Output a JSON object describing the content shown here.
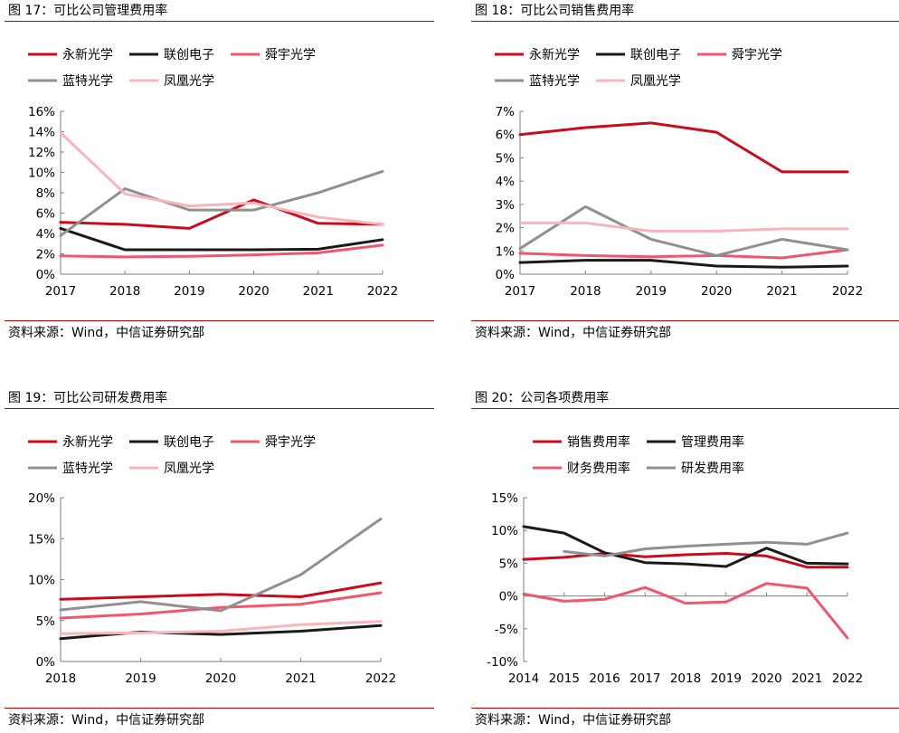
{
  "charts": [
    {
      "title": "图 17：可比公司管理费用率",
      "source": "资料来源：Wind，中信证券研究部",
      "chart_data": {
        "type": "line",
        "categories": [
          "2017",
          "2018",
          "2019",
          "2020",
          "2021",
          "2022"
        ],
        "ylim": [
          0,
          16
        ],
        "yticks": [
          0,
          2,
          4,
          6,
          8,
          10,
          12,
          14,
          16
        ],
        "ytick_labels": [
          "0%",
          "2%",
          "4%",
          "6%",
          "8%",
          "10%",
          "12%",
          "14%",
          "16%"
        ],
        "legend_placement": "top",
        "series": [
          {
            "name": "永新光学",
            "color": "#cc0a1e",
            "values": [
              5.1,
              4.9,
              4.5,
              7.3,
              5.0,
              4.9
            ]
          },
          {
            "name": "联创电子",
            "color": "#1a1a1a",
            "values": [
              4.5,
              2.4,
              2.4,
              2.4,
              2.45,
              3.4
            ]
          },
          {
            "name": "舜宇光学",
            "color": "#f0566e",
            "values": [
              1.8,
              1.7,
              1.75,
              1.9,
              2.1,
              2.85
            ]
          },
          {
            "name": "蓝特光学",
            "color": "#909090",
            "values": [
              3.8,
              8.4,
              6.3,
              6.3,
              8.0,
              10.1
            ]
          },
          {
            "name": "凤凰光学",
            "color": "#f7b5bc",
            "values": [
              13.9,
              7.9,
              6.7,
              7.0,
              5.6,
              4.9
            ]
          }
        ]
      }
    },
    {
      "title": "图 18：可比公司销售费用率",
      "source": "资料来源：Wind，中信证券研究部",
      "chart_data": {
        "type": "line",
        "categories": [
          "2017",
          "2018",
          "2019",
          "2020",
          "2021",
          "2022"
        ],
        "ylim": [
          0,
          7
        ],
        "yticks": [
          0,
          1,
          2,
          3,
          4,
          5,
          6,
          7
        ],
        "ytick_labels": [
          "0%",
          "1%",
          "2%",
          "3%",
          "4%",
          "5%",
          "6%",
          "7%"
        ],
        "legend_placement": "top",
        "series": [
          {
            "name": "永新光学",
            "color": "#cc0a1e",
            "values": [
              6.0,
              6.3,
              6.5,
              6.1,
              4.4,
              4.4
            ]
          },
          {
            "name": "联创电子",
            "color": "#1a1a1a",
            "values": [
              0.5,
              0.6,
              0.6,
              0.35,
              0.3,
              0.35
            ]
          },
          {
            "name": "舜宇光学",
            "color": "#f0566e",
            "values": [
              0.9,
              0.8,
              0.75,
              0.8,
              0.7,
              1.05
            ]
          },
          {
            "name": "蓝特光学",
            "color": "#909090",
            "values": [
              1.1,
              2.9,
              1.5,
              0.8,
              1.5,
              1.05
            ]
          },
          {
            "name": "凤凰光学",
            "color": "#f7b5bc",
            "values": [
              2.2,
              2.2,
              1.85,
              1.85,
              1.95,
              1.95
            ]
          }
        ]
      }
    },
    {
      "title": "图 19：可比公司研发费用率",
      "source": "资料来源：Wind，中信证券研究部",
      "chart_data": {
        "type": "line",
        "categories": [
          "2018",
          "2019",
          "2020",
          "2021",
          "2022"
        ],
        "ylim": [
          0,
          20
        ],
        "yticks": [
          0,
          5,
          10,
          15,
          20
        ],
        "ytick_labels": [
          "0%",
          "5%",
          "10%",
          "15%",
          "20%"
        ],
        "legend_placement": "top",
        "series": [
          {
            "name": "永新光学",
            "color": "#cc0a1e",
            "values": [
              7.6,
              7.9,
              8.2,
              7.9,
              9.6
            ]
          },
          {
            "name": "联创电子",
            "color": "#1a1a1a",
            "values": [
              2.8,
              3.6,
              3.3,
              3.7,
              4.4
            ]
          },
          {
            "name": "舜宇光学",
            "color": "#f0566e",
            "values": [
              5.3,
              5.8,
              6.6,
              7.0,
              8.4
            ]
          },
          {
            "name": "蓝特光学",
            "color": "#909090",
            "values": [
              6.3,
              7.3,
              6.2,
              10.6,
              17.4
            ]
          },
          {
            "name": "凤凰光学",
            "color": "#f7b5bc",
            "values": [
              3.4,
              3.5,
              3.7,
              4.5,
              4.9
            ]
          }
        ]
      }
    },
    {
      "title": "图 20：公司各项费用率",
      "source": "资料来源：Wind，中信证券研究部",
      "chart_data": {
        "type": "line",
        "categories": [
          "2014",
          "2015",
          "2016",
          "2017",
          "2018",
          "2019",
          "2020",
          "2021",
          "2022"
        ],
        "ylim": [
          -10,
          15
        ],
        "yticks": [
          -10,
          -5,
          0,
          5,
          10,
          15
        ],
        "ytick_labels": [
          "-10%",
          "-5%",
          "0%",
          "5%",
          "10%",
          "15%"
        ],
        "legend_placement": "top",
        "series": [
          {
            "name": "销售费用率",
            "color": "#cc0a1e",
            "values": [
              5.6,
              5.9,
              6.5,
              6.0,
              6.3,
              6.5,
              6.1,
              4.4,
              4.4
            ]
          },
          {
            "name": "管理费用率",
            "color": "#1a1a1a",
            "values": [
              10.6,
              9.6,
              6.6,
              5.1,
              4.9,
              4.5,
              7.3,
              5.0,
              4.9
            ]
          },
          {
            "name": "财务费用率",
            "color": "#f0566e",
            "values": [
              0.3,
              -0.8,
              -0.5,
              1.3,
              -1.1,
              -0.9,
              1.9,
              1.2,
              -6.4
            ]
          },
          {
            "name": "研发费用率",
            "color": "#909090",
            "values": [
              null,
              6.8,
              6.1,
              7.2,
              7.6,
              7.9,
              8.2,
              7.9,
              9.6
            ]
          }
        ]
      }
    }
  ]
}
